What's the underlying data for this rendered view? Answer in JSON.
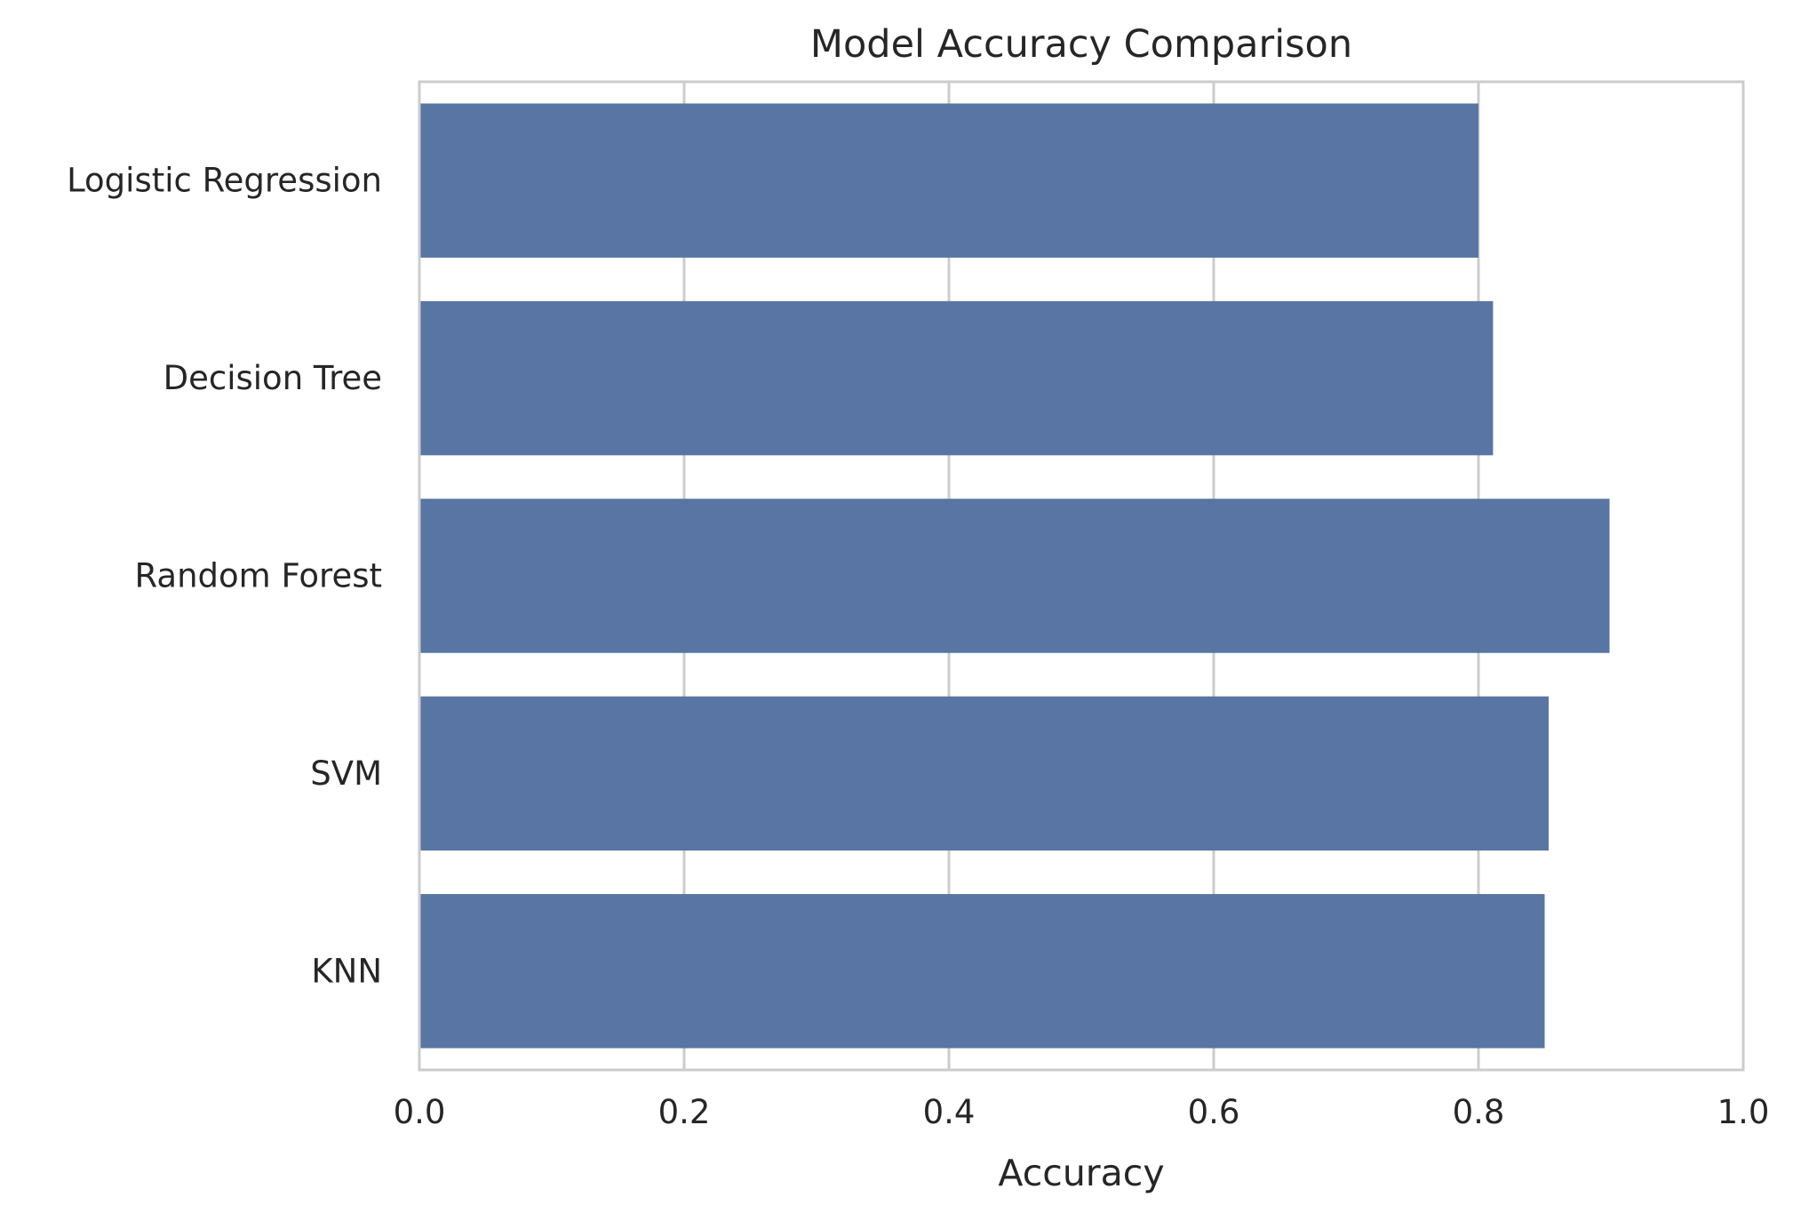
{
  "chart_data": {
    "type": "bar",
    "orientation": "horizontal",
    "title": "Model Accuracy Comparison",
    "xlabel": "Accuracy",
    "ylabel": "",
    "xlim": [
      0,
      1
    ],
    "xticks": [
      "0.0",
      "0.2",
      "0.4",
      "0.6",
      "0.8",
      "1.0"
    ],
    "categories": [
      "Logistic Regression",
      "Decision Tree",
      "Random Forest",
      "SVM",
      "KNN"
    ],
    "values": [
      0.8,
      0.811,
      0.899,
      0.853,
      0.85
    ],
    "grid": "vertical",
    "legend": "none",
    "colors": {
      "bar": "#5975a4",
      "grid": "#cccccc",
      "frame": "#cccccc",
      "text": "#262626"
    }
  }
}
